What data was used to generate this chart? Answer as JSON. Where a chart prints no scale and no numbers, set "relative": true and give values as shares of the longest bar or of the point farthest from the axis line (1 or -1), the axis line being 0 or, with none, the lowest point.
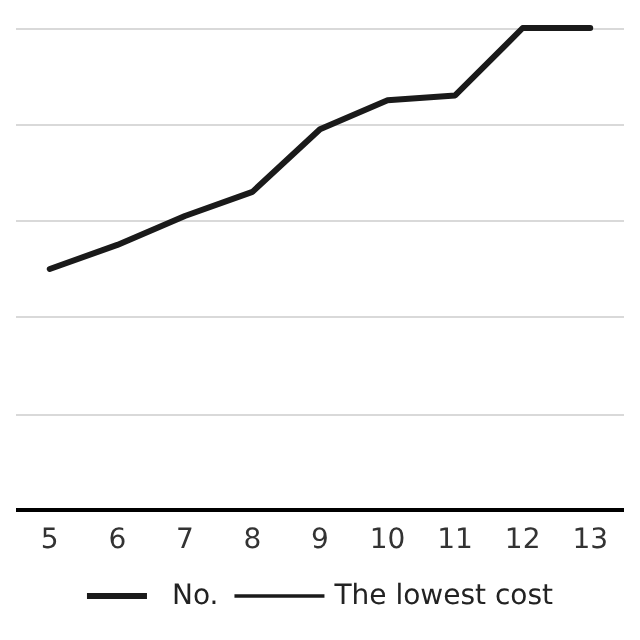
{
  "chart_data": {
    "type": "line",
    "relative": true,
    "categories": [
      "5",
      "6",
      "7",
      "8",
      "9",
      "10",
      "11",
      "12",
      "13"
    ],
    "series": [
      {
        "name": "No.",
        "color": "#1a1a1a",
        "values": [
          0.5,
          0.55,
          0.61,
          0.66,
          0.79,
          0.85,
          0.86,
          1,
          1
        ]
      },
      {
        "name": "The lowest cost",
        "color": "#1a1a1a",
        "values": [
          null,
          null,
          null,
          null,
          null,
          null,
          null,
          null,
          null
        ]
      }
    ],
    "grid": "y",
    "legend": "bottom",
    "marker": "none",
    "line_style": "solid"
  }
}
